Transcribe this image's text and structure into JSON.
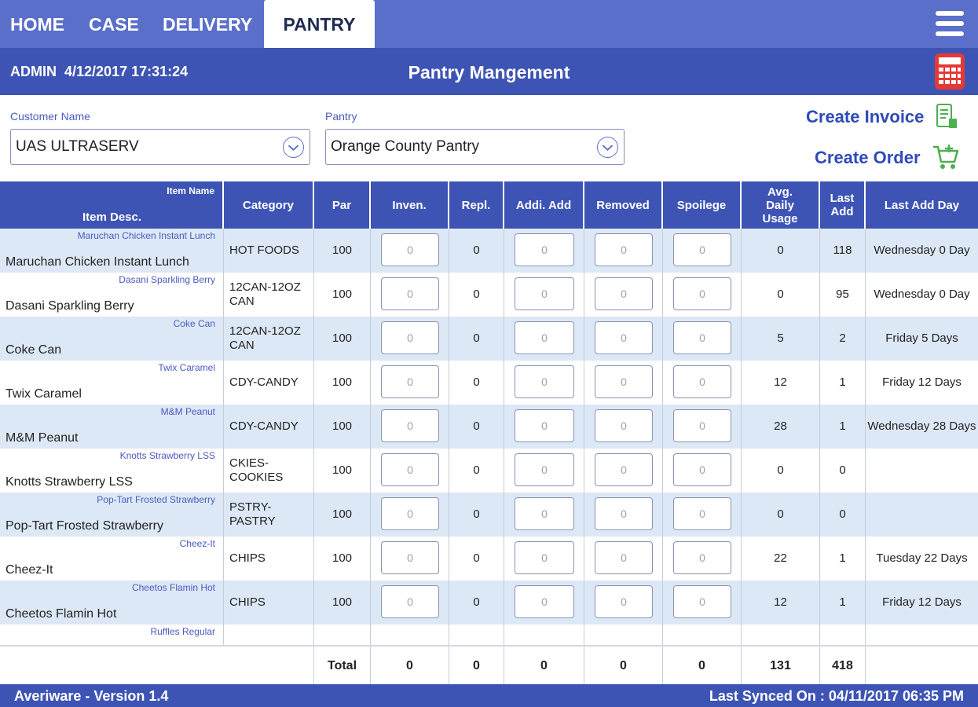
{
  "nav": {
    "tabs": [
      {
        "label": "HOME"
      },
      {
        "label": "CASE"
      },
      {
        "label": "DELIVERY"
      },
      {
        "label": "PANTRY",
        "active": true
      }
    ]
  },
  "header": {
    "user": "ADMIN",
    "datetime": "4/12/2017 17:31:24",
    "title": "Pantry Mangement"
  },
  "filters": {
    "customer_label": "Customer Name",
    "customer_value": "UAS ULTRASERV",
    "pantry_label": "Pantry",
    "pantry_value": "Orange County Pantry"
  },
  "actions": {
    "create_invoice": "Create Invoice",
    "create_order": "Create Order"
  },
  "table": {
    "headers": {
      "item_name": "Item Name",
      "item_desc": "Item Desc.",
      "category": "Category",
      "par": "Par",
      "inven": "Inven.",
      "repl": "Repl.",
      "addi_add": "Addi. Add",
      "removed": "Removed",
      "spoilege": "Spoilege",
      "avg_daily_usage": "Avg. Daily Usage",
      "last_add": "Last Add",
      "last_add_day": "Last Add Day"
    },
    "rows": [
      {
        "item_name": "Maruchan Chicken Instant Lunch",
        "item_desc": "Maruchan Chicken Instant Lunch",
        "category": "HOT FOODS",
        "par": "100",
        "inven": "0",
        "repl": "0",
        "addi_add": "0",
        "removed": "0",
        "spoilege": "0",
        "avg": "0",
        "last_add": "118",
        "last_add_day": "Wednesday 0 Day"
      },
      {
        "item_name": "Dasani Sparkling Berry",
        "item_desc": "Dasani Sparkling Berry",
        "category": "12CAN-12OZ CAN",
        "par": "100",
        "inven": "0",
        "repl": "0",
        "addi_add": "0",
        "removed": "0",
        "spoilege": "0",
        "avg": "0",
        "last_add": "95",
        "last_add_day": "Wednesday 0 Day"
      },
      {
        "item_name": "Coke Can",
        "item_desc": "Coke Can",
        "category": "12CAN-12OZ CAN",
        "par": "100",
        "inven": "0",
        "repl": "0",
        "addi_add": "0",
        "removed": "0",
        "spoilege": "0",
        "avg": "5",
        "last_add": "2",
        "last_add_day": "Friday   5 Days"
      },
      {
        "item_name": "Twix Caramel",
        "item_desc": "Twix Caramel",
        "category": "CDY-CANDY",
        "par": "100",
        "inven": "0",
        "repl": "0",
        "addi_add": "0",
        "removed": "0",
        "spoilege": "0",
        "avg": "12",
        "last_add": "1",
        "last_add_day": "Friday   12 Days"
      },
      {
        "item_name": "M&M Peanut",
        "item_desc": "M&M Peanut",
        "category": "CDY-CANDY",
        "par": "100",
        "inven": "0",
        "repl": "0",
        "addi_add": "0",
        "removed": "0",
        "spoilege": "0",
        "avg": "28",
        "last_add": "1",
        "last_add_day": "Wednesday 28 Days"
      },
      {
        "item_name": "Knotts Strawberry LSS",
        "item_desc": "Knotts Strawberry LSS",
        "category": "CKIES-COOKIES",
        "par": "100",
        "inven": "0",
        "repl": "0",
        "addi_add": "0",
        "removed": "0",
        "spoilege": "0",
        "avg": "0",
        "last_add": "0",
        "last_add_day": ""
      },
      {
        "item_name": "Pop-Tart Frosted Strawberry",
        "item_desc": "Pop-Tart Frosted Strawberry",
        "category": "PSTRY-PASTRY",
        "par": "100",
        "inven": "0",
        "repl": "0",
        "addi_add": "0",
        "removed": "0",
        "spoilege": "0",
        "avg": "0",
        "last_add": "0",
        "last_add_day": ""
      },
      {
        "item_name": "Cheez-It",
        "item_desc": "Cheez-It",
        "category": "CHIPS",
        "par": "100",
        "inven": "0",
        "repl": "0",
        "addi_add": "0",
        "removed": "0",
        "spoilege": "0",
        "avg": "22",
        "last_add": "1",
        "last_add_day": "Tuesday   22 Days"
      },
      {
        "item_name": "Cheetos Flamin Hot",
        "item_desc": "Cheetos Flamin Hot",
        "category": "CHIPS",
        "par": "100",
        "inven": "0",
        "repl": "0",
        "addi_add": "0",
        "removed": "0",
        "spoilege": "0",
        "avg": "12",
        "last_add": "1",
        "last_add_day": "Friday   12 Days"
      },
      {
        "item_name": "Ruffles Regular",
        "item_desc": "",
        "category": "",
        "par": "",
        "inven": "",
        "repl": "",
        "addi_add": "",
        "removed": "",
        "spoilege": "",
        "avg": "",
        "last_add": "",
        "last_add_day": ""
      }
    ],
    "totals": {
      "label": "Total",
      "inven": "0",
      "repl": "0",
      "addi_add": "0",
      "removed": "0",
      "spoilege": "0",
      "avg": "131",
      "last_add": "418"
    }
  },
  "footer": {
    "version": "Averiware - Version 1.4",
    "last_synced": "Last Synced On : 04/11/2017 06:35 PM"
  },
  "colors": {
    "nav_bg": "#5a6fc9",
    "header_bg": "#3d54b4",
    "row_alt": "#dde8f6",
    "accent": "#2f4ab8",
    "calc_icon": "#e53935",
    "action_icon": "#4caf50"
  },
  "icons": {
    "menu": "hamburger-menu-icon",
    "calculator": "calculator-icon",
    "invoice": "invoice-icon",
    "cart": "shopping-cart-icon",
    "dropdown": "chevron-down-icon"
  }
}
